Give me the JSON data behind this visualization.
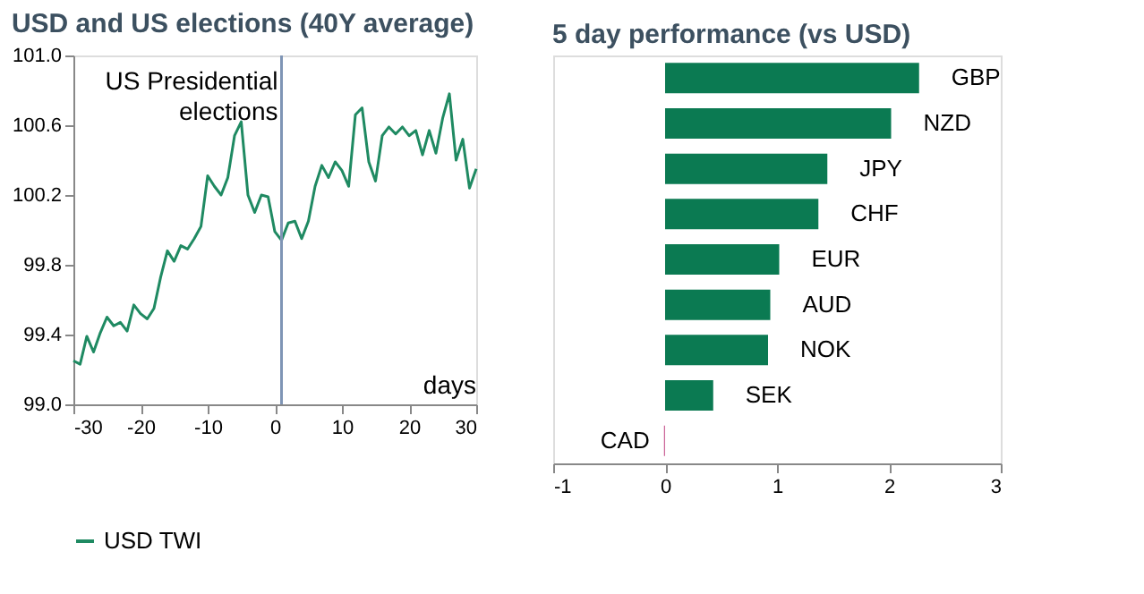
{
  "chart_data": [
    {
      "type": "line",
      "title": "USD and US elections (40Y average)",
      "xlabel": "days",
      "x": [
        -30,
        -29,
        -28,
        -27,
        -26,
        -25,
        -24,
        -23,
        -22,
        -21,
        -20,
        -19,
        -18,
        -17,
        -16,
        -15,
        -14,
        -13,
        -12,
        -11,
        -10,
        -9,
        -8,
        -7,
        -6,
        -5,
        -4,
        -3,
        -2,
        -1,
        0,
        1,
        2,
        3,
        4,
        5,
        6,
        7,
        8,
        9,
        10,
        11,
        12,
        13,
        14,
        15,
        16,
        17,
        18,
        19,
        20,
        21,
        22,
        23,
        24,
        25,
        26,
        27,
        28,
        29,
        30
      ],
      "series": [
        {
          "name": "USD TWI",
          "color": "#1f8a62",
          "values": [
            99.25,
            99.23,
            99.39,
            99.3,
            99.41,
            99.5,
            99.45,
            99.47,
            99.42,
            99.57,
            99.52,
            99.49,
            99.55,
            99.73,
            99.88,
            99.82,
            99.91,
            99.89,
            99.95,
            100.02,
            100.31,
            100.25,
            100.2,
            100.3,
            100.54,
            100.62,
            100.2,
            100.1,
            100.2,
            100.19,
            99.99,
            99.94,
            100.04,
            100.05,
            99.95,
            100.05,
            100.25,
            100.37,
            100.3,
            100.39,
            100.34,
            100.25,
            100.66,
            100.7,
            100.39,
            100.28,
            100.54,
            100.59,
            100.55,
            100.59,
            100.54,
            100.57,
            100.43,
            100.57,
            100.44,
            100.64,
            100.78,
            100.4,
            100.52,
            100.24,
            100.35
          ]
        }
      ],
      "xlim": [
        -30,
        30
      ],
      "xticks": [
        -30,
        -20,
        -10,
        0,
        10,
        20,
        30
      ],
      "ylim": [
        99.0,
        101.0
      ],
      "yticks": [
        {
          "value": 99.0,
          "label": "99.0"
        },
        99.4,
        99.8,
        100.2,
        100.6,
        {
          "value": 101.0,
          "label": "101.0"
        }
      ],
      "ref_lines": [
        {
          "axis": "x",
          "value": 1,
          "label": "US Presidential elections",
          "color": "#7f95b5"
        }
      ],
      "grid": false,
      "legend": "bottom",
      "marker": "none",
      "line_style": "solid"
    },
    {
      "type": "bar",
      "title": "5 day performance (vs USD)",
      "orientation": "horizontal",
      "categories": [
        "GBP",
        "NZD",
        "JPY",
        "CHF",
        "EUR",
        "AUD",
        "NOK",
        "SEK",
        "CAD"
      ],
      "values": [
        2.27,
        2.02,
        1.45,
        1.37,
        1.02,
        0.94,
        0.92,
        0.43,
        -0.01
      ],
      "colors": [
        "#0b7a52",
        "#0b7a52",
        "#0b7a52",
        "#0b7a52",
        "#0b7a52",
        "#0b7a52",
        "#0b7a52",
        "#0b7a52",
        "#cc6699"
      ],
      "xlim": [
        -1,
        3
      ],
      "xticks": [
        -1,
        0,
        1,
        2,
        3
      ],
      "grid": false
    }
  ]
}
